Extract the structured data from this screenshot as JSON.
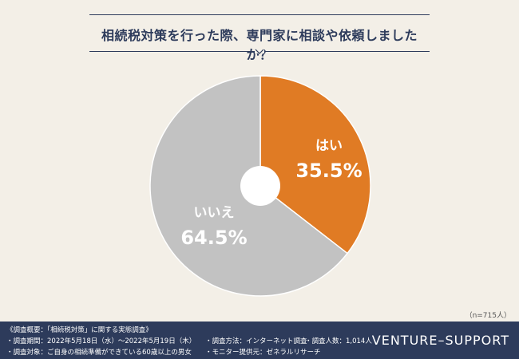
{
  "header": {
    "title": "相続税対策を行った際、専門家に相談や依頼しましたか？"
  },
  "chart_data": {
    "type": "pie",
    "title": "相続税対策を行った際、専門家に相談や依頼しましたか？",
    "slices": [
      {
        "label": "はい",
        "value": 35.5,
        "value_text": "35.5%",
        "color": "#e07b24"
      },
      {
        "label": "いいえ",
        "value": 64.5,
        "value_text": "64.5%",
        "color": "#c2c2c2"
      }
    ],
    "donut_hole": true,
    "start": "top",
    "direction": "clockwise"
  },
  "note": "（n=715人）",
  "footer": {
    "survey_title": "《調査概要：「相続税対策」に関する実態調査》",
    "period": "・調査期間：2022年5月18日（水）〜2022年5月19日（木）",
    "method": "・調査方法：インターネット調査",
    "count": "・調査人数：1,014人",
    "target": "・調査対象：ご自身の相続準備ができている60歳以上の男女",
    "provider": "・モニター提供元：ゼネラルリサーチ",
    "brand": "VENTURE–SUPPORT"
  },
  "colors": {
    "navy": "#2d3b5b",
    "orange": "#e07b24",
    "gray": "#c2c2c2",
    "background": "#f3efe7"
  }
}
